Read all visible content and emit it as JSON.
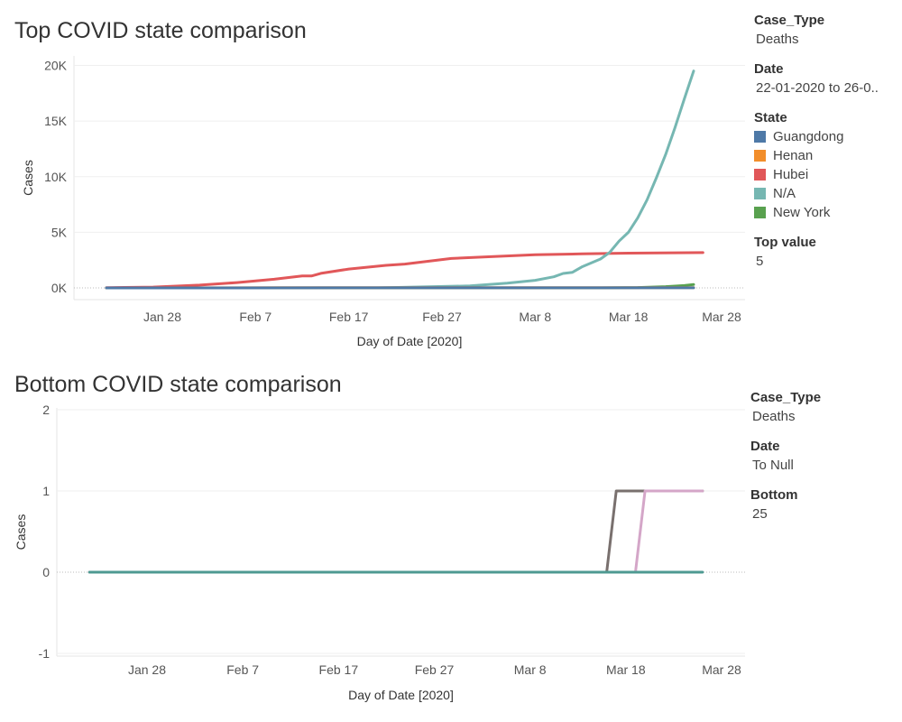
{
  "top": {
    "title": "Top COVID state comparison",
    "filters": [
      {
        "title": "Case_Type",
        "value": "Deaths"
      },
      {
        "title": "Date",
        "value": "22-01-2020 to 26-0.."
      }
    ],
    "legend": {
      "title": "State",
      "items": [
        {
          "name": "Guangdong",
          "color": "#4e79a7"
        },
        {
          "name": "Henan",
          "color": "#f28e2b"
        },
        {
          "name": "Hubei",
          "color": "#e15759"
        },
        {
          "name": "N/A",
          "color": "#76b7b2"
        },
        {
          "name": "New York",
          "color": "#59a14f"
        }
      ]
    },
    "param": {
      "title": "Top value",
      "value": "5"
    }
  },
  "bottom": {
    "title": "Bottom COVID state comparison",
    "filters": [
      {
        "title": "Case_Type",
        "value": "Deaths"
      },
      {
        "title": "Date",
        "value": "To Null"
      },
      {
        "title": "Bottom",
        "value": "25"
      }
    ]
  },
  "chart_data": [
    {
      "type": "line",
      "title": "Top COVID state comparison",
      "xlabel": "Day of Date [2020]",
      "ylabel": "Cases",
      "x_range": [
        "2020-01-22",
        "2020-03-26"
      ],
      "x_ticks": [
        {
          "date": "2020-01-28",
          "label": "Jan 28"
        },
        {
          "date": "2020-02-07",
          "label": "Feb 7"
        },
        {
          "date": "2020-02-17",
          "label": "Feb 17"
        },
        {
          "date": "2020-02-27",
          "label": "Feb 27"
        },
        {
          "date": "2020-03-08",
          "label": "Mar 8"
        },
        {
          "date": "2020-03-18",
          "label": "Mar 18"
        },
        {
          "date": "2020-03-28",
          "label": "Mar 28"
        }
      ],
      "ylim": [
        0,
        20000
      ],
      "y_ticks": [
        {
          "value": 0,
          "label": "0K"
        },
        {
          "value": 5000,
          "label": "5K"
        },
        {
          "value": 10000,
          "label": "10K"
        },
        {
          "value": 15000,
          "label": "15K"
        },
        {
          "value": 20000,
          "label": "20K"
        }
      ],
      "series": [
        {
          "name": "Hubei",
          "color": "#e15759",
          "points": [
            [
              "2020-01-22",
              17
            ],
            [
              "2020-01-27",
              76
            ],
            [
              "2020-02-01",
              249
            ],
            [
              "2020-02-05",
              479
            ],
            [
              "2020-02-09",
              780
            ],
            [
              "2020-02-12",
              1068
            ],
            [
              "2020-02-13",
              1068
            ],
            [
              "2020-02-14",
              1310
            ],
            [
              "2020-02-17",
              1696
            ],
            [
              "2020-02-21",
              2029
            ],
            [
              "2020-02-23",
              2144
            ],
            [
              "2020-02-25",
              2346
            ],
            [
              "2020-02-28",
              2641
            ],
            [
              "2020-03-03",
              2803
            ],
            [
              "2020-03-08",
              2986
            ],
            [
              "2020-03-13",
              3056
            ],
            [
              "2020-03-18",
              3122
            ],
            [
              "2020-03-26",
              3169
            ]
          ]
        },
        {
          "name": "N/A",
          "color": "#76b7b2",
          "points": [
            [
              "2020-01-22",
              0
            ],
            [
              "2020-02-20",
              0
            ],
            [
              "2020-03-01",
              180
            ],
            [
              "2020-03-05",
              420
            ],
            [
              "2020-03-08",
              680
            ],
            [
              "2020-03-10",
              1000
            ],
            [
              "2020-03-11",
              1300
            ],
            [
              "2020-03-12",
              1400
            ],
            [
              "2020-03-13",
              1880
            ],
            [
              "2020-03-15",
              2600
            ],
            [
              "2020-03-16",
              3200
            ],
            [
              "2020-03-17",
              4200
            ],
            [
              "2020-03-18",
              5000
            ],
            [
              "2020-03-19",
              6300
            ],
            [
              "2020-03-20",
              7900
            ],
            [
              "2020-03-21",
              9900
            ],
            [
              "2020-03-22",
              12000
            ],
            [
              "2020-03-23",
              14400
            ],
            [
              "2020-03-24",
              17000
            ],
            [
              "2020-03-25",
              19500
            ]
          ]
        },
        {
          "name": "New York",
          "color": "#59a14f",
          "points": [
            [
              "2020-01-22",
              0
            ],
            [
              "2020-03-15",
              0
            ],
            [
              "2020-03-19",
              30
            ],
            [
              "2020-03-22",
              110
            ],
            [
              "2020-03-24",
              210
            ],
            [
              "2020-03-25",
              310
            ]
          ]
        },
        {
          "name": "Henan",
          "color": "#f28e2b",
          "points": [
            [
              "2020-01-22",
              0
            ],
            [
              "2020-02-10",
              13
            ],
            [
              "2020-03-01",
              22
            ],
            [
              "2020-03-25",
              22
            ]
          ]
        },
        {
          "name": "Guangdong",
          "color": "#4e79a7",
          "points": [
            [
              "2020-01-22",
              0
            ],
            [
              "2020-02-15",
              5
            ],
            [
              "2020-03-25",
              8
            ]
          ]
        }
      ]
    },
    {
      "type": "line",
      "title": "Bottom COVID state comparison",
      "xlabel": "Day of Date [2020]",
      "ylabel": "Cases",
      "x_range": [
        "2020-01-22",
        "2020-03-26"
      ],
      "x_ticks": [
        {
          "date": "2020-01-28",
          "label": "Jan 28"
        },
        {
          "date": "2020-02-07",
          "label": "Feb 7"
        },
        {
          "date": "2020-02-17",
          "label": "Feb 17"
        },
        {
          "date": "2020-02-27",
          "label": "Feb 27"
        },
        {
          "date": "2020-03-08",
          "label": "Mar 8"
        },
        {
          "date": "2020-03-18",
          "label": "Mar 18"
        },
        {
          "date": "2020-03-28",
          "label": "Mar 28"
        }
      ],
      "ylim": [
        -1,
        2
      ],
      "y_ticks": [
        {
          "value": -1,
          "label": "-1"
        },
        {
          "value": 0,
          "label": "0"
        },
        {
          "value": 1,
          "label": "1"
        },
        {
          "value": 2,
          "label": "2"
        }
      ],
      "series": [
        {
          "color": "#79706e",
          "points": [
            [
              "2020-01-22",
              0
            ],
            [
              "2020-03-16",
              0
            ],
            [
              "2020-03-17",
              1
            ],
            [
              "2020-03-26",
              1
            ]
          ]
        },
        {
          "color": "#d4a6c8",
          "points": [
            [
              "2020-01-22",
              0
            ],
            [
              "2020-03-19",
              0
            ],
            [
              "2020-03-20",
              1
            ],
            [
              "2020-03-26",
              1
            ]
          ]
        },
        {
          "color": "#4e9a92",
          "points": [
            [
              "2020-01-22",
              0
            ],
            [
              "2020-03-26",
              0
            ]
          ]
        }
      ]
    }
  ]
}
